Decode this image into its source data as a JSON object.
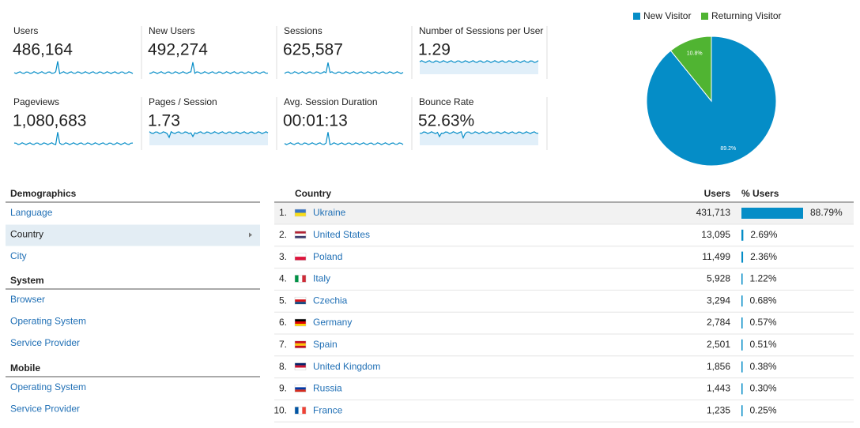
{
  "metrics": [
    {
      "label": "Users",
      "value": "486,164"
    },
    {
      "label": "New Users",
      "value": "492,274"
    },
    {
      "label": "Sessions",
      "value": "625,587"
    },
    {
      "label": "Number of Sessions per User",
      "value": "1.29"
    },
    {
      "label": "Pageviews",
      "value": "1,080,683"
    },
    {
      "label": "Pages / Session",
      "value": "1.73"
    },
    {
      "label": "Avg. Session Duration",
      "value": "00:01:13"
    },
    {
      "label": "Bounce Rate",
      "value": "52.63%"
    }
  ],
  "chart_data": {
    "type": "pie",
    "categories": [
      "New Visitor",
      "Returning Visitor"
    ],
    "values": [
      89.2,
      10.8
    ],
    "value_labels": [
      "89.2%",
      "10.8%"
    ],
    "colors": [
      "#058dc7",
      "#50b432"
    ]
  },
  "nav": [
    {
      "title": "Demographics",
      "items": [
        "Language",
        "Country",
        "City"
      ]
    },
    {
      "title": "System",
      "items": [
        "Browser",
        "Operating System",
        "Service Provider"
      ]
    },
    {
      "title": "Mobile",
      "items": [
        "Operating System",
        "Service Provider"
      ]
    }
  ],
  "table": {
    "columns": [
      "Country",
      "Users",
      "% Users"
    ],
    "ranks": [
      "1.",
      "2.",
      "3.",
      "4.",
      "5.",
      "6.",
      "7.",
      "8.",
      "9.",
      "10."
    ],
    "countries": [
      "Ukraine",
      "United States",
      "Poland",
      "Italy",
      "Czechia",
      "Germany",
      "Spain",
      "United Kingdom",
      "Russia",
      "France"
    ],
    "users": [
      "431,713",
      "13,095",
      "11,499",
      "5,928",
      "3,294",
      "2,784",
      "2,501",
      "1,856",
      "1,443",
      "1,235"
    ],
    "share": [
      88.79,
      2.69,
      2.36,
      1.22,
      0.68,
      0.57,
      0.51,
      0.38,
      0.3,
      0.25
    ],
    "share_labels": [
      "88.79%",
      "2.69%",
      "2.36%",
      "1.22%",
      "0.68%",
      "0.57%",
      "0.51%",
      "0.38%",
      "0.30%",
      "0.25%"
    ]
  }
}
